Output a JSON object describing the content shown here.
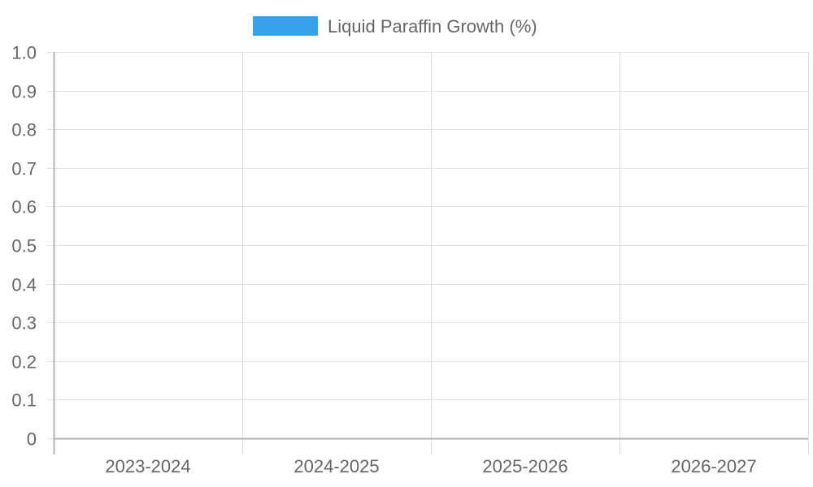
{
  "chart_data": {
    "type": "bar",
    "categories": [
      "2023-2024",
      "2024-2025",
      "2025-2026",
      "2026-2027"
    ],
    "series": [
      {
        "name": "Liquid Paraffin Growth (%)",
        "values": [
          0,
          0,
          0,
          0
        ],
        "color": "#36a2eb"
      }
    ],
    "title": "",
    "xlabel": "",
    "ylabel": "",
    "ylim": [
      0,
      1.0
    ],
    "yticks": [
      "0",
      "0.1",
      "0.2",
      "0.3",
      "0.4",
      "0.5",
      "0.6",
      "0.7",
      "0.8",
      "0.9",
      "1.0"
    ],
    "grid": true,
    "legend_position": "top-center"
  }
}
